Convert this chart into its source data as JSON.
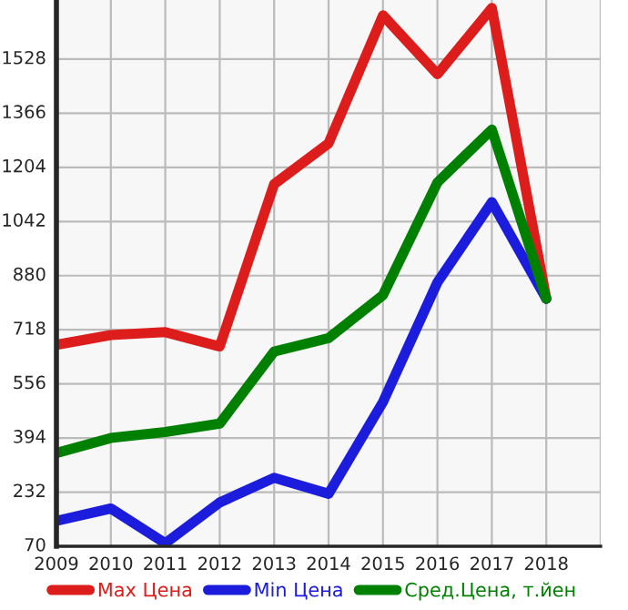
{
  "chart_data": {
    "type": "line",
    "x": [
      2009,
      2010,
      2011,
      2012,
      2013,
      2014,
      2015,
      2016,
      2017,
      2018
    ],
    "series": [
      {
        "name": "Max Цена",
        "color": "#dd1c1c",
        "values": [
          673,
          702,
          711,
          668,
          1154,
          1276,
          1659,
          1483,
          1681,
          811
        ]
      },
      {
        "name": "Min Цена",
        "color": "#1c1cdd",
        "values": [
          146,
          183,
          79,
          201,
          275,
          227,
          502,
          860,
          1100,
          811
        ]
      },
      {
        "name": "Сред.Цена, т.йен",
        "color": "#008000",
        "values": [
          349,
          394,
          412,
          437,
          653,
          693,
          822,
          1159,
          1317,
          811
        ]
      }
    ],
    "xlim": [
      2009,
      2019
    ],
    "xticks": [
      2009,
      2010,
      2011,
      2012,
      2013,
      2014,
      2015,
      2016,
      2017,
      2018,
      {
        "value": 2019,
        "label": null
      }
    ],
    "ylim": [
      70,
      1705
    ],
    "yticks": [
      70,
      232,
      394,
      556,
      718,
      880,
      1042,
      1204,
      1366,
      1528
    ],
    "grid": true,
    "legend": "bottom",
    "marker": "none",
    "line_style": "solid"
  }
}
